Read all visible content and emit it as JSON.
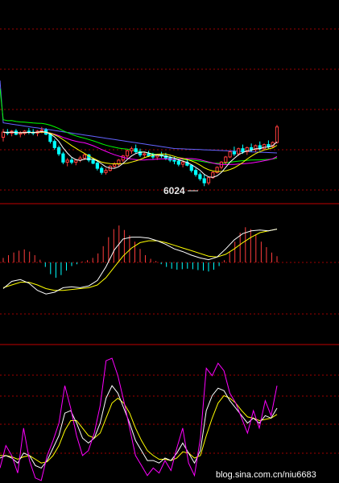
{
  "chart_data": [
    {
      "type": "candlestick",
      "panel": "price",
      "low_marker_label": "6024",
      "colors": {
        "up": "#ff3c3c",
        "down": "#00ffff",
        "ma5": "#ffffff",
        "ma10": "#ffff00",
        "ma20": "#ff00ff",
        "ma60": "#00ff00",
        "ma120": "#6464ff",
        "grid": "#a00000",
        "separator": "#c00000"
      },
      "ohlc": [
        [
          6260,
          6300,
          6240,
          6285
        ],
        [
          6285,
          6300,
          6270,
          6280
        ],
        [
          6280,
          6295,
          6265,
          6290
        ],
        [
          6290,
          6300,
          6270,
          6275
        ],
        [
          6275,
          6290,
          6260,
          6280
        ],
        [
          6280,
          6295,
          6270,
          6290
        ],
        [
          6290,
          6305,
          6275,
          6285
        ],
        [
          6285,
          6300,
          6270,
          6280
        ],
        [
          6280,
          6295,
          6265,
          6290
        ],
        [
          6290,
          6310,
          6280,
          6295
        ],
        [
          6295,
          6305,
          6270,
          6275
        ],
        [
          6275,
          6280,
          6230,
          6240
        ],
        [
          6240,
          6250,
          6200,
          6210
        ],
        [
          6210,
          6220,
          6170,
          6180
        ],
        [
          6180,
          6190,
          6130,
          6140
        ],
        [
          6140,
          6160,
          6120,
          6150
        ],
        [
          6150,
          6165,
          6130,
          6140
        ],
        [
          6140,
          6155,
          6125,
          6150
        ],
        [
          6150,
          6170,
          6140,
          6160
        ],
        [
          6160,
          6185,
          6150,
          6175
        ],
        [
          6175,
          6180,
          6140,
          6150
        ],
        [
          6150,
          6160,
          6130,
          6135
        ],
        [
          6135,
          6145,
          6100,
          6110
        ],
        [
          6110,
          6120,
          6080,
          6090
        ],
        [
          6090,
          6110,
          6080,
          6100
        ],
        [
          6100,
          6125,
          6095,
          6120
        ],
        [
          6120,
          6140,
          6110,
          6130
        ],
        [
          6130,
          6155,
          6120,
          6150
        ],
        [
          6150,
          6175,
          6140,
          6170
        ],
        [
          6170,
          6200,
          6160,
          6195
        ],
        [
          6195,
          6215,
          6180,
          6205
        ],
        [
          6205,
          6225,
          6185,
          6190
        ],
        [
          6190,
          6205,
          6165,
          6175
        ],
        [
          6175,
          6190,
          6160,
          6180
        ],
        [
          6180,
          6195,
          6165,
          6170
        ],
        [
          6170,
          6185,
          6155,
          6165
        ],
        [
          6165,
          6180,
          6150,
          6175
        ],
        [
          6175,
          6190,
          6160,
          6170
        ],
        [
          6170,
          6185,
          6150,
          6160
        ],
        [
          6160,
          6170,
          6140,
          6150
        ],
        [
          6150,
          6165,
          6130,
          6145
        ],
        [
          6145,
          6155,
          6120,
          6130
        ],
        [
          6130,
          6150,
          6115,
          6140
        ],
        [
          6140,
          6155,
          6120,
          6125
        ],
        [
          6125,
          6130,
          6090,
          6100
        ],
        [
          6100,
          6110,
          6070,
          6080
        ],
        [
          6080,
          6090,
          6050,
          6060
        ],
        [
          6060,
          6080,
          6024,
          6040
        ],
        [
          6040,
          6070,
          6030,
          6065
        ],
        [
          6065,
          6095,
          6060,
          6090
        ],
        [
          6090,
          6120,
          6085,
          6115
        ],
        [
          6115,
          6145,
          6105,
          6140
        ],
        [
          6140,
          6170,
          6130,
          6165
        ],
        [
          6165,
          6195,
          6160,
          6190
        ],
        [
          6190,
          6215,
          6170,
          6180
        ],
        [
          6180,
          6210,
          6170,
          6205
        ],
        [
          6205,
          6225,
          6180,
          6190
        ],
        [
          6190,
          6215,
          6175,
          6210
        ],
        [
          6210,
          6230,
          6190,
          6200
        ],
        [
          6200,
          6225,
          6190,
          6220
        ],
        [
          6220,
          6240,
          6195,
          6205
        ],
        [
          6205,
          6230,
          6200,
          6225
        ],
        [
          6225,
          6245,
          6205,
          6215
        ],
        [
          6215,
          6240,
          6210,
          6235
        ],
        [
          6235,
          6320,
          6230,
          6310
        ]
      ]
    },
    {
      "type": "macd",
      "panel": "macd",
      "histogram": [
        0.1,
        0.16,
        0.22,
        0.26,
        0.29,
        0.24,
        0.16,
        0.06,
        -0.1,
        -0.26,
        -0.34,
        -0.28,
        -0.18,
        -0.08,
        -0.04,
        0.02,
        0.05,
        0.1,
        0.2,
        0.36,
        0.56,
        0.74,
        0.82,
        0.72,
        0.6,
        0.46,
        0.3,
        0.16,
        0.08,
        0.03,
        -0.04,
        -0.1,
        -0.14,
        -0.16,
        -0.15,
        -0.14,
        -0.15,
        -0.17,
        -0.18,
        -0.2,
        -0.16,
        -0.08,
        0.05,
        0.24,
        0.46,
        0.66,
        0.78,
        0.74,
        0.62,
        0.46,
        0.34,
        0.22,
        0.14
      ],
      "dif": [
        -0.58,
        -0.42,
        -0.38,
        -0.46,
        -0.62,
        -0.7,
        -0.66,
        -0.56,
        -0.54,
        -0.56,
        -0.52,
        -0.4,
        -0.1,
        0.28,
        0.52,
        0.56,
        0.56,
        0.54,
        0.48,
        0.4,
        0.3,
        0.24,
        0.16,
        0.1,
        0.06,
        0.12,
        0.3,
        0.5,
        0.64,
        0.7,
        0.72,
        0.7,
        0.74
      ],
      "dea": [
        -0.56,
        -0.5,
        -0.44,
        -0.44,
        -0.5,
        -0.58,
        -0.62,
        -0.62,
        -0.6,
        -0.58,
        -0.56,
        -0.5,
        -0.34,
        -0.1,
        0.14,
        0.32,
        0.44,
        0.48,
        0.48,
        0.44,
        0.38,
        0.32,
        0.26,
        0.2,
        0.14,
        0.12,
        0.18,
        0.3,
        0.44,
        0.56,
        0.66,
        0.7,
        0.74
      ]
    },
    {
      "type": "line",
      "panel": "kdj",
      "series": [
        {
          "values": [
            0.12,
            0.3,
            0.22,
            0.08,
            0.44,
            0.18,
            0.04,
            0.02,
            0.22,
            0.34,
            0.48,
            0.78,
            0.6,
            0.38,
            0.22,
            0.26,
            0.4,
            0.62,
            0.98,
            1.0,
            0.86,
            0.66,
            0.44,
            0.22,
            0.14,
            0.06,
            0.12,
            0.08,
            0.18,
            0.1,
            0.28,
            0.44,
            0.16,
            0.06,
            0.36,
            0.92,
            0.86,
            0.96,
            0.9,
            0.72,
            0.64,
            0.52,
            0.4,
            0.58,
            0.44,
            0.66,
            0.54,
            0.78
          ]
        },
        {
          "values": [
            0.2,
            0.22,
            0.2,
            0.16,
            0.24,
            0.22,
            0.14,
            0.12,
            0.18,
            0.28,
            0.38,
            0.56,
            0.58,
            0.48,
            0.36,
            0.32,
            0.36,
            0.48,
            0.68,
            0.78,
            0.72,
            0.6,
            0.48,
            0.34,
            0.26,
            0.18,
            0.18,
            0.16,
            0.2,
            0.18,
            0.24,
            0.32,
            0.24,
            0.16,
            0.26,
            0.58,
            0.7,
            0.76,
            0.74,
            0.66,
            0.6,
            0.54,
            0.48,
            0.52,
            0.48,
            0.54,
            0.52,
            0.6
          ]
        },
        {
          "values": [
            0.22,
            0.22,
            0.21,
            0.19,
            0.21,
            0.22,
            0.19,
            0.16,
            0.17,
            0.22,
            0.3,
            0.42,
            0.5,
            0.5,
            0.44,
            0.38,
            0.36,
            0.4,
            0.52,
            0.64,
            0.68,
            0.64,
            0.56,
            0.44,
            0.34,
            0.26,
            0.22,
            0.19,
            0.19,
            0.18,
            0.2,
            0.25,
            0.24,
            0.2,
            0.22,
            0.38,
            0.52,
            0.64,
            0.7,
            0.68,
            0.64,
            0.58,
            0.53,
            0.52,
            0.5,
            0.51,
            0.52,
            0.55
          ]
        }
      ]
    }
  ],
  "watermark": "blog.sina.com.cn/niu6683"
}
